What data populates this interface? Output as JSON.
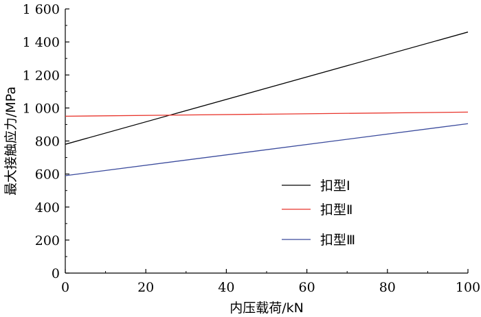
{
  "chart_data": {
    "type": "line",
    "xlabel": "内压载荷/kN",
    "ylabel": "最大接触应力/MPa",
    "xlim": [
      0,
      100
    ],
    "ylim": [
      0,
      1600
    ],
    "x_ticks": [
      0,
      20,
      40,
      60,
      80,
      100
    ],
    "x_tick_labels": [
      "0",
      "20",
      "40",
      "60",
      "80",
      "100"
    ],
    "y_ticks": [
      0,
      200,
      400,
      600,
      800,
      1000,
      1200,
      1400,
      1600
    ],
    "y_tick_labels": [
      "0",
      "200",
      "400",
      "600",
      "800",
      "1 000",
      "1 200",
      "1 400",
      "1 600"
    ],
    "grid": false,
    "legend_position": "right-middle",
    "series": [
      {
        "name": "扣型Ⅰ",
        "color": "#000000",
        "x": [
          0,
          100
        ],
        "y": [
          780,
          1460
        ]
      },
      {
        "name": "扣型Ⅱ",
        "color": "#e8332a",
        "x": [
          0,
          100
        ],
        "y": [
          950,
          975
        ]
      },
      {
        "name": "扣型Ⅲ",
        "color": "#3a4a9c",
        "x": [
          0,
          100
        ],
        "y": [
          590,
          905
        ]
      }
    ]
  }
}
